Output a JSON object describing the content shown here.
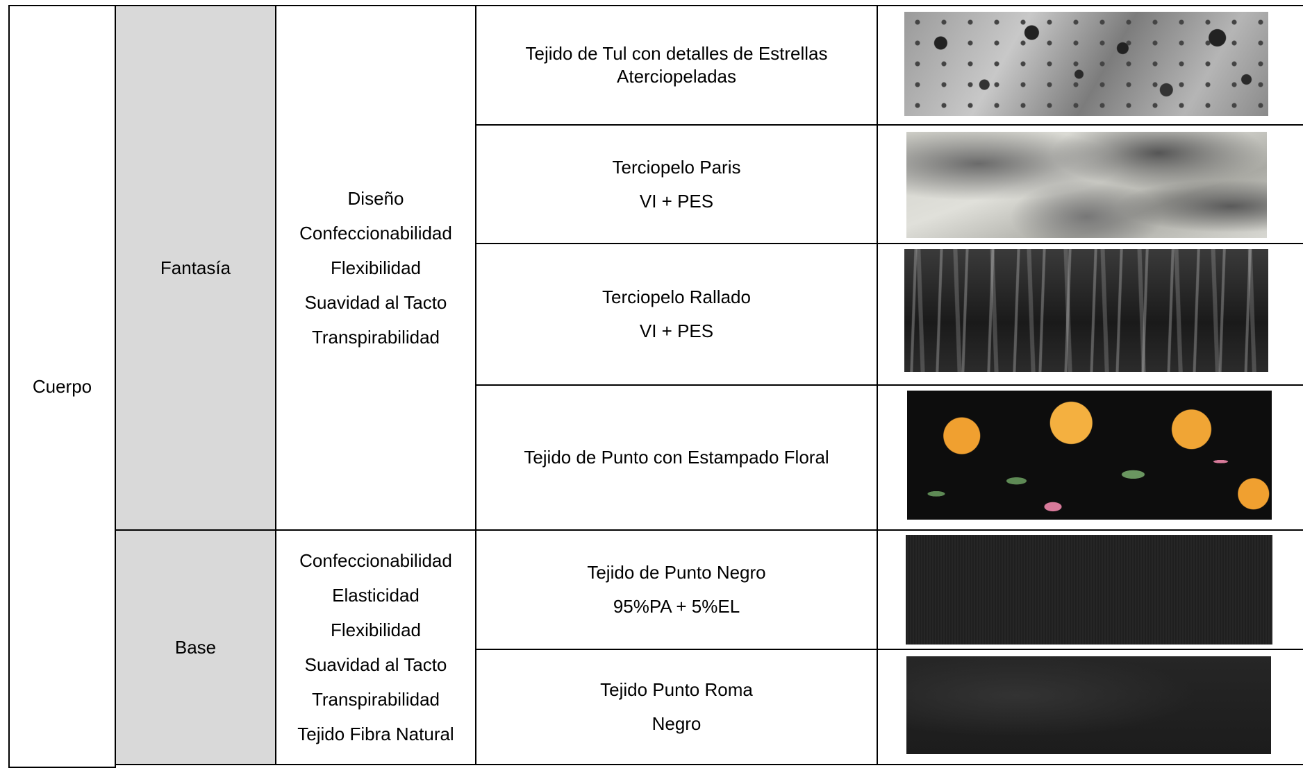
{
  "table": {
    "section": "Cuerpo",
    "groups": [
      {
        "name": "Fantasía",
        "properties": [
          "Diseño",
          "Confeccionabilidad",
          "Flexibilidad",
          "Suavidad al Tacto",
          "Transpirabilidad"
        ],
        "fabrics": [
          {
            "lines": [
              "Tejido de Tul con detalles de Estrellas Aterciopeladas"
            ]
          },
          {
            "lines": [
              "Terciopelo Paris",
              "VI + PES"
            ]
          },
          {
            "lines": [
              "Terciopelo Rallado",
              "VI + PES"
            ]
          },
          {
            "lines": [
              "Tejido de Punto con Estampado Floral"
            ]
          }
        ]
      },
      {
        "name": "Base",
        "properties": [
          "Confeccionabilidad",
          "Elasticidad",
          "Flexibilidad",
          "Suavidad al Tacto",
          "Transpirabilidad",
          "Tejido Fibra Natural"
        ],
        "fabrics": [
          {
            "lines": [
              "Tejido de Punto Negro",
              "95%PA + 5%EL"
            ]
          },
          {
            "lines": [
              "Tejido Punto Roma",
              "Negro"
            ]
          }
        ]
      }
    ]
  }
}
